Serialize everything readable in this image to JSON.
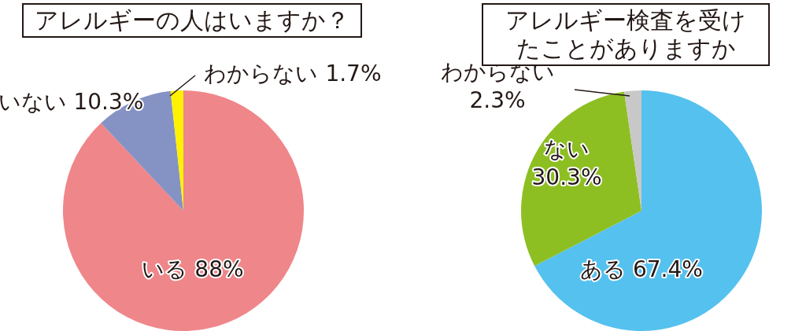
{
  "chart_data": [
    {
      "type": "pie",
      "title": "アレルギーの人はいますか？",
      "categories": [
        "いる",
        "いない",
        "わからない"
      ],
      "values": [
        88,
        10.3,
        1.7
      ],
      "colors": [
        "#ef868a",
        "#8593c4",
        "#fff100"
      ],
      "value_labels": [
        "88%",
        "10.3%",
        "1.7%"
      ]
    },
    {
      "type": "pie",
      "title": "アレルギー検査を受けたことがありますか",
      "categories": [
        "ある",
        "ない",
        "わからない"
      ],
      "values": [
        67.4,
        30.3,
        2.3
      ],
      "colors": [
        "#55c1ee",
        "#8dbf22",
        "#c8c8c8"
      ],
      "value_labels": [
        "67.4%",
        "30.3%",
        "2.3%"
      ]
    }
  ]
}
